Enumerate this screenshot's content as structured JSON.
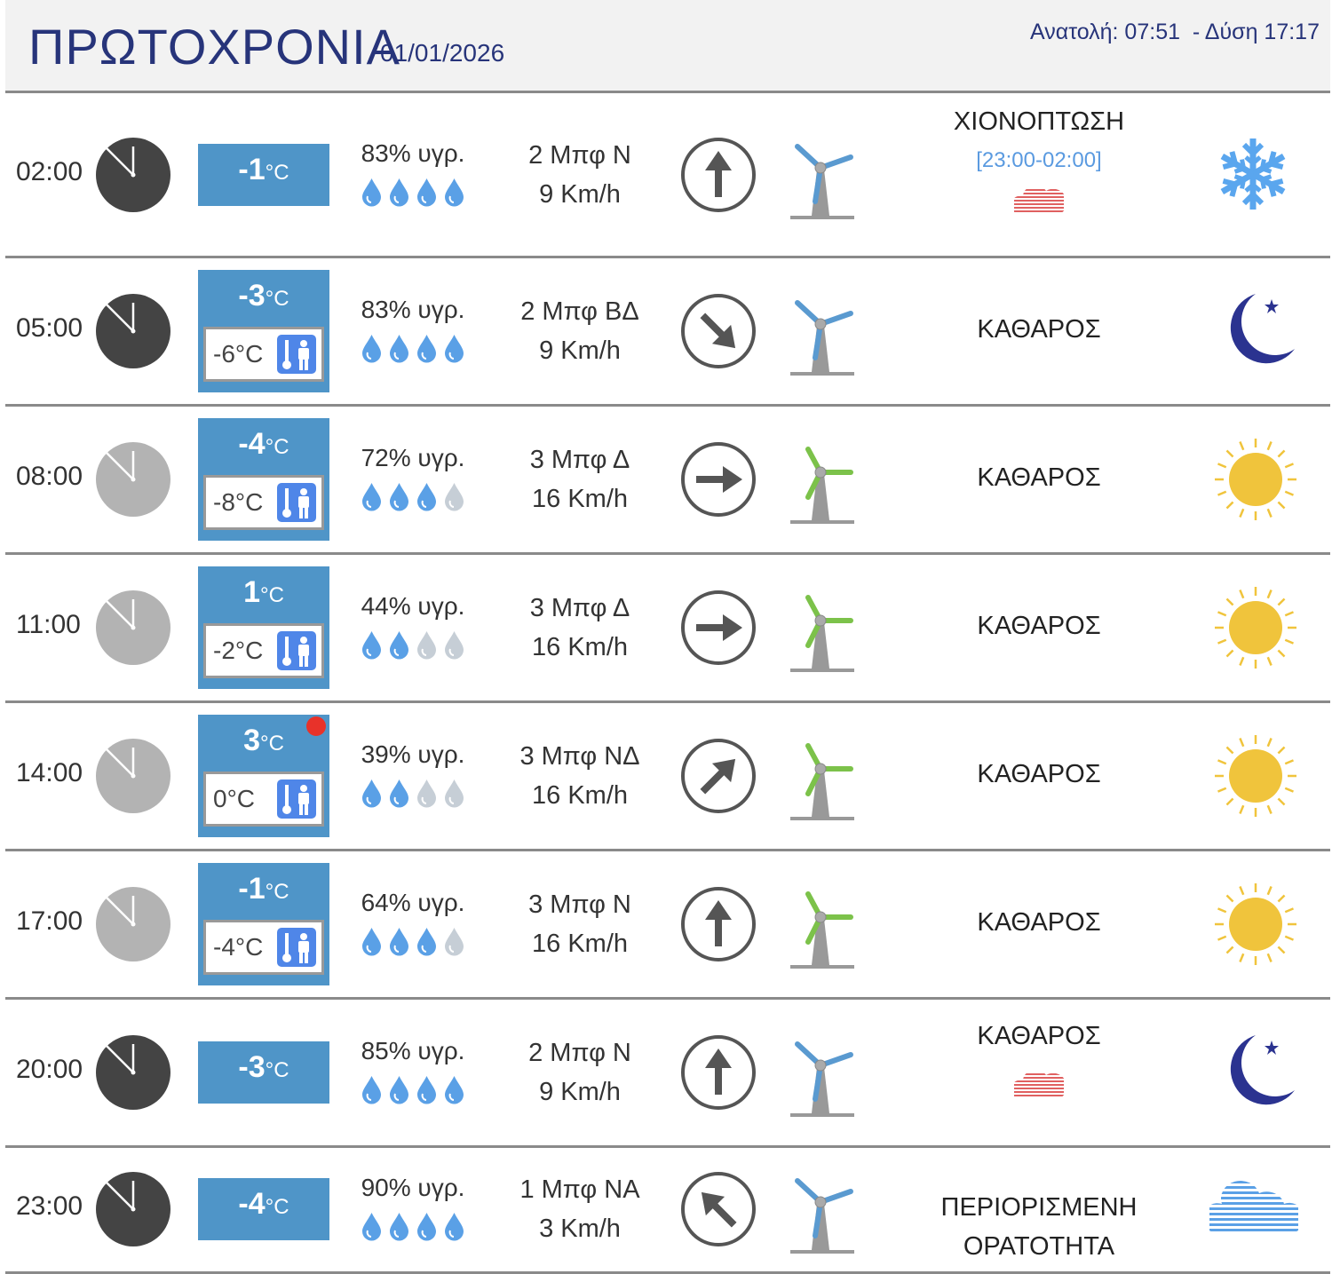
{
  "header": {
    "title": "ΠΡΩΤΟΧΡΟΝΙΑ",
    "date": "01/01/2026",
    "sun_times": "Ανατολή: 07:51  - Δύση 17:17"
  },
  "colors": {
    "accent": "#4f95c8",
    "title": "#27347a",
    "drop_full": "#5aa0e6",
    "drop_empty": "#c6ced6",
    "turbine_blue": "#5a9ad0",
    "turbine_green": "#7cc24a",
    "sun": "#f0c43c",
    "moon": "#2b3390",
    "snow": "#5aa6ee",
    "haze_red": "#e06060"
  },
  "rows": [
    {
      "time": "02:00",
      "night": true,
      "temp": "-1",
      "unit": "°C",
      "feels": null,
      "humidity": "83% υγρ.",
      "drops": 4,
      "wind_force": "2 Μπφ Ν",
      "wind_speed": "9 Km/h",
      "dir": "N",
      "turbine": "blue",
      "condition": "ΧΙΟΝΟΠΤΩΣΗ",
      "condition2": "",
      "range": "[23:00-02:00]",
      "haze": "red",
      "icon": "snowflake-icon",
      "alert": false
    },
    {
      "time": "05:00",
      "night": true,
      "temp": "-3",
      "unit": "°C",
      "feels": "-6°C",
      "humidity": "83% υγρ.",
      "drops": 4,
      "wind_force": "2 Μπφ ΒΔ",
      "wind_speed": "9 Km/h",
      "dir": "BΔ",
      "turbine": "blue",
      "condition": "ΚΑΘΑΡΟΣ",
      "condition2": "",
      "range": "",
      "haze": "",
      "icon": "moon-icon",
      "alert": false
    },
    {
      "time": "08:00",
      "night": false,
      "temp": "-4",
      "unit": "°C",
      "feels": "-8°C",
      "humidity": "72% υγρ.",
      "drops": 3,
      "wind_force": "3 Μπφ Δ",
      "wind_speed": "16 Km/h",
      "dir": "Δ",
      "turbine": "green",
      "condition": "ΚΑΘΑΡΟΣ",
      "condition2": "",
      "range": "",
      "haze": "",
      "icon": "sun-icon",
      "alert": false
    },
    {
      "time": "11:00",
      "night": false,
      "temp": "1",
      "unit": "°C",
      "feels": "-2°C",
      "humidity": "44% υγρ.",
      "drops": 2,
      "wind_force": "3 Μπφ Δ",
      "wind_speed": "16 Km/h",
      "dir": "Δ",
      "turbine": "green",
      "condition": "ΚΑΘΑΡΟΣ",
      "condition2": "",
      "range": "",
      "haze": "",
      "icon": "sun-icon",
      "alert": false
    },
    {
      "time": "14:00",
      "night": false,
      "temp": "3",
      "unit": "°C",
      "feels": "0°C",
      "humidity": "39% υγρ.",
      "drops": 2,
      "wind_force": "3 Μπφ ΝΔ",
      "wind_speed": "16 Km/h",
      "dir": "ΝΔ",
      "turbine": "green",
      "condition": "ΚΑΘΑΡΟΣ",
      "condition2": "",
      "range": "",
      "haze": "",
      "icon": "sun-icon",
      "alert": true
    },
    {
      "time": "17:00",
      "night": false,
      "temp": "-1",
      "unit": "°C",
      "feels": "-4°C",
      "humidity": "64% υγρ.",
      "drops": 3,
      "wind_force": "3 Μπφ Ν",
      "wind_speed": "16 Km/h",
      "dir": "N",
      "turbine": "green",
      "condition": "ΚΑΘΑΡΟΣ",
      "condition2": "",
      "range": "",
      "haze": "",
      "icon": "sun-icon",
      "alert": false
    },
    {
      "time": "20:00",
      "night": true,
      "temp": "-3",
      "unit": "°C",
      "feels": null,
      "humidity": "85% υγρ.",
      "drops": 4,
      "wind_force": "2 Μπφ Ν",
      "wind_speed": "9 Km/h",
      "dir": "N",
      "turbine": "blue",
      "condition": "ΚΑΘΑΡΟΣ",
      "condition2": "",
      "range": "",
      "haze": "red",
      "icon": "moon-icon",
      "alert": false
    },
    {
      "time": "23:00",
      "night": true,
      "temp": "-4",
      "unit": "°C",
      "feels": null,
      "humidity": "90% υγρ.",
      "drops": 4,
      "wind_force": "1 Μπφ ΝΑ",
      "wind_speed": "3 Km/h",
      "dir": "ΝΑ",
      "turbine": "blue",
      "condition": "ΠΕΡΙΟΡΙΣΜΕΝΗ",
      "condition2": "ΟΡΑΤΟΤΗΤΑ",
      "range": "",
      "haze": "",
      "icon": "fog-icon",
      "alert": false
    }
  ]
}
